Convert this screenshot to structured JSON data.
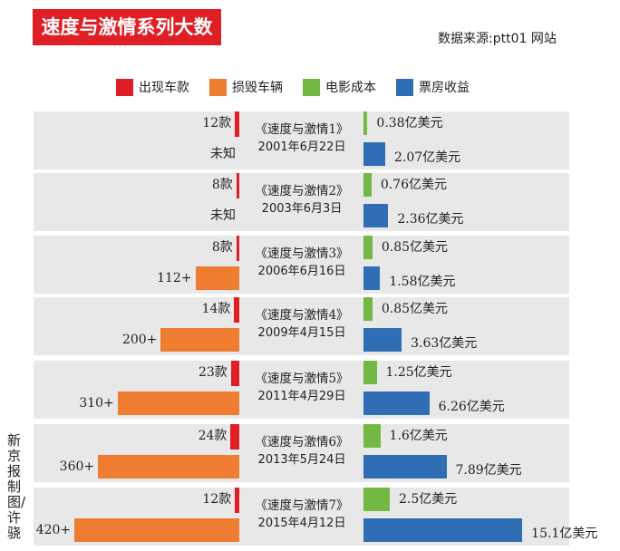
{
  "title": "速度与激情系列大数据",
  "source": "数据来源:ptt01 网站",
  "credit": "新京报制图/许骁",
  "chart_data": {
    "type": "bar",
    "title": "速度与激情系列大数据",
    "legend": [
      {
        "name": "出现车款",
        "color": "#e01e25"
      },
      {
        "name": "损毁车辆",
        "color": "#ee7d31"
      },
      {
        "name": "电影成本",
        "color": "#73b843"
      },
      {
        "name": "票房收益",
        "color": "#2f6db5"
      }
    ],
    "legend_placement": "top",
    "categories": [
      {
        "film": "《速度与激情1》",
        "date": "2001年6月22日",
        "cars": 12,
        "cars_label": "12款",
        "destroyed": null,
        "destroyed_label": "未知",
        "cost": 0.38,
        "cost_label": "0.38亿美元",
        "box": 2.07,
        "box_label": "2.07亿美元"
      },
      {
        "film": "《速度与激情2》",
        "date": "2003年6月3日",
        "cars": 8,
        "cars_label": "8款",
        "destroyed": null,
        "destroyed_label": "未知",
        "cost": 0.76,
        "cost_label": "0.76亿美元",
        "box": 2.36,
        "box_label": "2.36亿美元"
      },
      {
        "film": "《速度与激情3》",
        "date": "2006年6月16日",
        "cars": 8,
        "cars_label": "8款",
        "destroyed": 112,
        "destroyed_label": "112+",
        "cost": 0.85,
        "cost_label": "0.85亿美元",
        "box": 1.58,
        "box_label": "1.58亿美元"
      },
      {
        "film": "《速度与激情4》",
        "date": "2009年4月15日",
        "cars": 14,
        "cars_label": "14款",
        "destroyed": 200,
        "destroyed_label": "200+",
        "cost": 0.85,
        "cost_label": "0.85亿美元",
        "box": 3.63,
        "box_label": "3.63亿美元"
      },
      {
        "film": "《速度与激情5》",
        "date": "2011年4月29日",
        "cars": 23,
        "cars_label": "23款",
        "destroyed": 310,
        "destroyed_label": "310+",
        "cost": 1.25,
        "cost_label": "1.25亿美元",
        "box": 6.26,
        "box_label": "6.26亿美元"
      },
      {
        "film": "《速度与激情6》",
        "date": "2013年5月24日",
        "cars": 24,
        "cars_label": "24款",
        "destroyed": 360,
        "destroyed_label": "360+",
        "cost": 1.6,
        "cost_label": "1.6亿美元",
        "box": 7.89,
        "box_label": "7.89亿美元"
      },
      {
        "film": "《速度与激情7》",
        "date": "2015年4月12日",
        "cars": 12,
        "cars_label": "12款",
        "destroyed": 420,
        "destroyed_label": "420+",
        "cost": 2.5,
        "cost_label": "2.5亿美元",
        "box": 15.1,
        "box_label": "15.1亿美元"
      }
    ]
  }
}
